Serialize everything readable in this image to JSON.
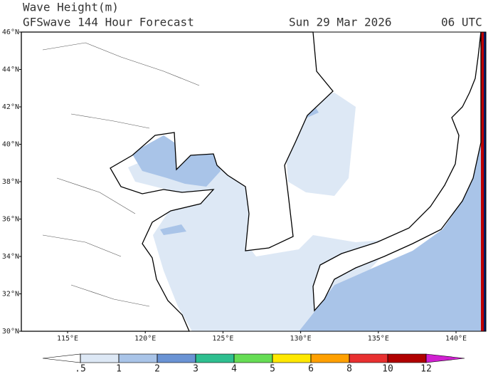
{
  "header": {
    "title": "Wave Height(m)",
    "subtitle": "GFSwave 144 Hour Forecast",
    "date": "Sun 29 Mar 2026",
    "time": "06 UTC"
  },
  "map": {
    "lat_labels": [
      "46°N",
      "44°N",
      "42°N",
      "40°N",
      "38°N",
      "36°N",
      "34°N",
      "32°N",
      "30°N"
    ],
    "lon_labels": [
      "115°E",
      "120°E",
      "125°E",
      "130°E",
      "135°E",
      "140°E"
    ]
  },
  "colorbar": {
    "ticks": [
      {
        "value": 0.5,
        "label": ".5"
      },
      1,
      2,
      3,
      4,
      5,
      6,
      8,
      10,
      12
    ],
    "colors": [
      "#ffffff",
      "#dde8f5",
      "#a9c4e8",
      "#6a93d4",
      "#2fbf90",
      "#66dd55",
      "#ffe800",
      "#ffa000",
      "#e83030",
      "#b00000",
      "#d020d0"
    ]
  }
}
